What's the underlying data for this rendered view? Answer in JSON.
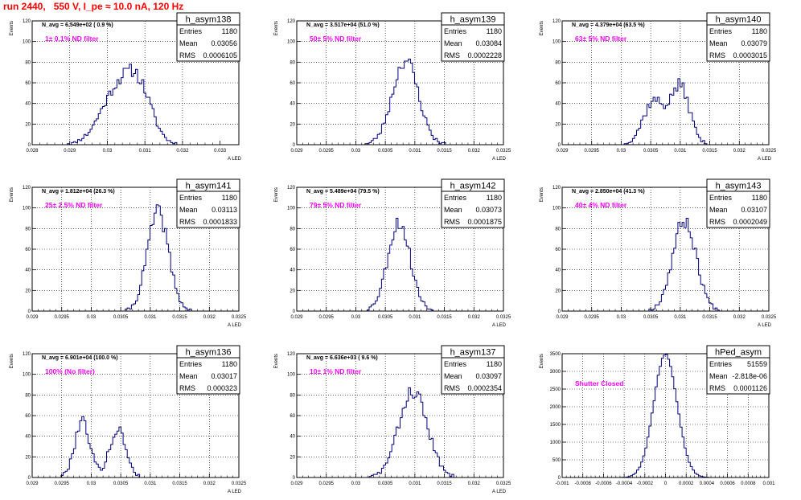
{
  "page": {
    "title": "run 2440,   550 V, I_pe ≈ 10.0 nA, 120 Hz"
  },
  "colors": {
    "histogram": "#000080",
    "annotation": "#ff00ff",
    "title": "#ff0000"
  },
  "chart_data": [
    {
      "type": "histogram",
      "name": "h_asym138",
      "navg": "N_avg = 6.549e+02 ( 0.9 %)",
      "label": "1± 0.1% ND filter",
      "stats": [
        [
          "Entries",
          "1180"
        ],
        [
          "Mean",
          "0.03056"
        ],
        [
          "RMS",
          "0.0006105"
        ]
      ],
      "xlim": [
        0.028,
        0.0335
      ],
      "ylim": [
        0,
        120
      ],
      "xticks": [
        0.028,
        0.029,
        0.03,
        0.031,
        0.032,
        0.033
      ],
      "xtick_labels": [
        "0.028",
        "0.029",
        "0.03",
        "0.031",
        "0.032",
        "0.033"
      ],
      "yticks": [
        0,
        20,
        40,
        60,
        80,
        100,
        120
      ],
      "ytick_labels": [
        "0",
        "20",
        "40",
        "60",
        "80",
        "100",
        "120"
      ],
      "ylabel": "Events",
      "xlabel": "A_LED",
      "shape": [
        [
          0.03025,
          0.00045,
          50
        ],
        [
          0.03085,
          0.00035,
          45
        ]
      ],
      "seed": 11
    },
    {
      "type": "histogram",
      "name": "h_asym139",
      "navg": "N_avg = 3.517e+04 (51.0 %)",
      "label": "50± 5% ND filter",
      "stats": [
        [
          "Entries",
          "1180"
        ],
        [
          "Mean",
          "0.03084"
        ],
        [
          "RMS",
          "0.0002228"
        ]
      ],
      "xlim": [
        0.029,
        0.0325
      ],
      "ylim": [
        0,
        120
      ],
      "xticks": [
        0.029,
        0.0295,
        0.03,
        0.0305,
        0.031,
        0.0315,
        0.032,
        0.0325
      ],
      "xtick_labels": [
        "0.029",
        "0.0295",
        "0.03",
        "0.0305",
        "0.031",
        "0.0315",
        "0.032",
        "0.0325"
      ],
      "yticks": [
        0,
        20,
        40,
        60,
        80,
        100,
        120
      ],
      "ytick_labels": [
        "0",
        "20",
        "40",
        "60",
        "80",
        "100",
        "120"
      ],
      "ylabel": "Events",
      "xlabel": "A_LED",
      "shape": [
        [
          0.03084,
          0.00022,
          82
        ]
      ],
      "seed": 23
    },
    {
      "type": "histogram",
      "name": "h_asym140",
      "navg": "N_avg = 4.379e+04 (63.5 %)",
      "label": "63± 5% ND filter",
      "stats": [
        [
          "Entries",
          "1180"
        ],
        [
          "Mean",
          "0.03079"
        ],
        [
          "RMS",
          "0.0003015"
        ]
      ],
      "xlim": [
        0.029,
        0.0325
      ],
      "ylim": [
        0,
        120
      ],
      "xticks": [
        0.029,
        0.0295,
        0.03,
        0.0305,
        0.031,
        0.0315,
        0.032,
        0.0325
      ],
      "xtick_labels": [
        "0.029",
        "0.0295",
        "0.03",
        "0.0305",
        "0.031",
        "0.0315",
        "0.032",
        "0.0325"
      ],
      "yticks": [
        0,
        20,
        40,
        60,
        80,
        100,
        120
      ],
      "ytick_labels": [
        "0",
        "20",
        "40",
        "60",
        "80",
        "100",
        "120"
      ],
      "ylabel": "Events",
      "xlabel": "A_LED",
      "shape": [
        [
          0.03055,
          0.00018,
          42
        ],
        [
          0.031,
          0.00016,
          56
        ]
      ],
      "seed": 37
    },
    {
      "type": "histogram",
      "name": "h_asym141",
      "navg": "N_avg = 1.812e+04 (26.3 %)",
      "label": "25± 2.5% ND filter",
      "stats": [
        [
          "Entries",
          "1180"
        ],
        [
          "Mean",
          "0.03113"
        ],
        [
          "RMS",
          "0.0001833"
        ]
      ],
      "xlim": [
        0.029,
        0.0325
      ],
      "ylim": [
        0,
        120
      ],
      "xticks": [
        0.029,
        0.0295,
        0.03,
        0.0305,
        0.031,
        0.0315,
        0.032,
        0.0325
      ],
      "xtick_labels": [
        "0.029",
        "0.0295",
        "0.03",
        "0.0305",
        "0.031",
        "0.0315",
        "0.032",
        "0.0325"
      ],
      "yticks": [
        0,
        20,
        40,
        60,
        80,
        100,
        120
      ],
      "ytick_labels": [
        "0",
        "20",
        "40",
        "60",
        "80",
        "100",
        "120"
      ],
      "ylabel": "Events",
      "xlabel": "A_LED",
      "shape": [
        [
          0.03113,
          0.00018,
          96
        ]
      ],
      "seed": 41
    },
    {
      "type": "histogram",
      "name": "h_asym142",
      "navg": "N_avg = 5.489e+04 (79.5 %)",
      "label": "79± 5% ND filter",
      "stats": [
        [
          "Entries",
          "1180"
        ],
        [
          "Mean",
          "0.03073"
        ],
        [
          "RMS",
          "0.0001875"
        ]
      ],
      "xlim": [
        0.029,
        0.0325
      ],
      "ylim": [
        0,
        120
      ],
      "xticks": [
        0.029,
        0.0295,
        0.03,
        0.0305,
        0.031,
        0.0315,
        0.032,
        0.0325
      ],
      "xtick_labels": [
        "0.029",
        "0.0295",
        "0.03",
        "0.0305",
        "0.031",
        "0.0315",
        "0.032",
        "0.0325"
      ],
      "yticks": [
        0,
        20,
        40,
        60,
        80,
        100,
        120
      ],
      "ytick_labels": [
        "0",
        "20",
        "40",
        "60",
        "80",
        "100",
        "120"
      ],
      "ylabel": "Events",
      "xlabel": "A_LED",
      "shape": [
        [
          0.03073,
          0.00019,
          86
        ]
      ],
      "seed": 53
    },
    {
      "type": "histogram",
      "name": "h_asym143",
      "navg": "N_avg = 2.850e+04 (41.3 %)",
      "label": "40± 4% ND filter",
      "stats": [
        [
          "Entries",
          "1180"
        ],
        [
          "Mean",
          "0.03107"
        ],
        [
          "RMS",
          "0.0002049"
        ]
      ],
      "xlim": [
        0.029,
        0.0325
      ],
      "ylim": [
        0,
        120
      ],
      "xticks": [
        0.029,
        0.0295,
        0.03,
        0.0305,
        0.031,
        0.0315,
        0.032,
        0.0325
      ],
      "xtick_labels": [
        "0.029",
        "0.0295",
        "0.03",
        "0.0305",
        "0.031",
        "0.0315",
        "0.032",
        "0.0325"
      ],
      "yticks": [
        0,
        20,
        40,
        60,
        80,
        100,
        120
      ],
      "ytick_labels": [
        "0",
        "20",
        "40",
        "60",
        "80",
        "100",
        "120"
      ],
      "ylabel": "Events",
      "xlabel": "A_LED",
      "shape": [
        [
          0.03107,
          0.0002,
          88
        ]
      ],
      "seed": 67
    },
    {
      "type": "histogram",
      "name": "h_asym136",
      "navg": "N_avg = 6.901e+04 (100.0 %)",
      "label": "100% (No filter)",
      "stats": [
        [
          "Entries",
          "1180"
        ],
        [
          "Mean",
          "0.03017"
        ],
        [
          "RMS",
          "0.000323"
        ]
      ],
      "xlim": [
        0.029,
        0.0325
      ],
      "ylim": [
        0,
        120
      ],
      "xticks": [
        0.029,
        0.0295,
        0.03,
        0.0305,
        0.031,
        0.0315,
        0.032,
        0.0325
      ],
      "xtick_labels": [
        "0.029",
        "0.0295",
        "0.03",
        "0.0305",
        "0.031",
        "0.0315",
        "0.032",
        "0.0325"
      ],
      "yticks": [
        0,
        20,
        40,
        60,
        80,
        100,
        120
      ],
      "ytick_labels": [
        "0",
        "20",
        "40",
        "60",
        "80",
        "100",
        "120"
      ],
      "ylabel": "Events",
      "xlabel": "A_LED",
      "shape": [
        [
          0.02985,
          0.00013,
          55
        ],
        [
          0.03045,
          0.00014,
          46
        ]
      ],
      "seed": 79
    },
    {
      "type": "histogram",
      "name": "h_asym137",
      "navg": "N_avg = 6.636e+03 ( 9.6 %)",
      "label": "10± 1% ND filter",
      "stats": [
        [
          "Entries",
          "1180"
        ],
        [
          "Mean",
          "0.03097"
        ],
        [
          "RMS",
          "0.0002354"
        ]
      ],
      "xlim": [
        0.029,
        0.0325
      ],
      "ylim": [
        0,
        120
      ],
      "xticks": [
        0.029,
        0.0295,
        0.03,
        0.0305,
        0.031,
        0.0315,
        0.032,
        0.0325
      ],
      "xtick_labels": [
        "0.029",
        "0.0295",
        "0.03",
        "0.0305",
        "0.031",
        "0.0315",
        "0.032",
        "0.0325"
      ],
      "yticks": [
        0,
        20,
        40,
        60,
        80,
        100,
        120
      ],
      "ytick_labels": [
        "0",
        "20",
        "40",
        "60",
        "80",
        "100",
        "120"
      ],
      "ylabel": "Events",
      "xlabel": "A_LED",
      "shape": [
        [
          0.03097,
          0.00024,
          84
        ]
      ],
      "seed": 83
    },
    {
      "type": "histogram",
      "name": "hPed_asym",
      "navg": "",
      "label": "Shutter Closed",
      "stats": [
        [
          "Entries",
          "51559"
        ],
        [
          "Mean",
          "-2.818e-06"
        ],
        [
          "RMS",
          "0.0001126"
        ]
      ],
      "xlim": [
        -0.001,
        0.001
      ],
      "ylim": [
        0,
        3500
      ],
      "xticks": [
        -0.001,
        -0.0008,
        -0.0006,
        -0.0004,
        -0.0002,
        0,
        0.0002,
        0.0004,
        0.0006,
        0.0008,
        0.001
      ],
      "xtick_labels": [
        "-0.001",
        "-0.0008",
        "-0.0006",
        "-0.0004",
        "-0.0002",
        "0",
        "0.0002",
        "0.0004",
        "0.0006",
        "0.0008",
        "0.001"
      ],
      "yticks": [
        0,
        500,
        1000,
        1500,
        2000,
        2500,
        3000,
        3500
      ],
      "ytick_labels": [
        "0",
        "500",
        "1000",
        "1500",
        "2000",
        "2500",
        "3000",
        "3500"
      ],
      "ylabel": "Events",
      "xlabel": "",
      "shape": [
        [
          0,
          0.000113,
          3500
        ]
      ],
      "seed": 97
    }
  ]
}
